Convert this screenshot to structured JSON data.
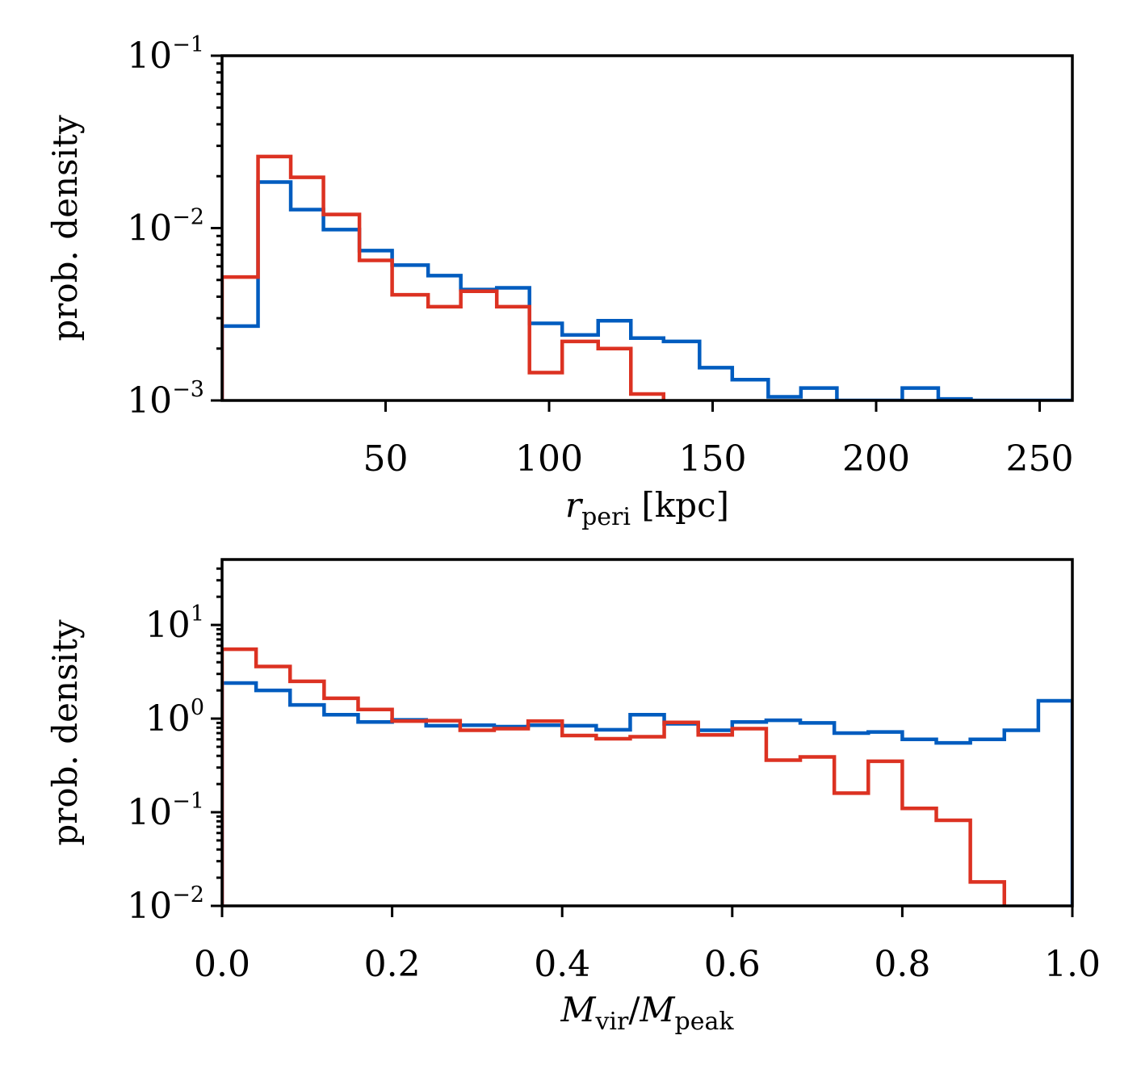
{
  "colors": {
    "blue": "#005cbf",
    "red": "#dc3222"
  },
  "chart_data": [
    {
      "type": "histogram",
      "xlabel": {
        "var": "r",
        "sub": "peri",
        "unit": " [kpc]"
      },
      "ylabel": "prob. density",
      "yscale": "log",
      "xlim": [
        0,
        260
      ],
      "ylim": [
        0.001,
        0.1
      ],
      "xticks": [
        50,
        100,
        150,
        200,
        250
      ],
      "xticklabels": [
        "50",
        "100",
        "150",
        "200",
        "250"
      ],
      "yticks": [
        0.001,
        0.01,
        0.1
      ],
      "yticklabels": [
        {
          "base": "10",
          "exp": "−3"
        },
        {
          "base": "10",
          "exp": "−2"
        },
        {
          "base": "10",
          "exp": "−1"
        }
      ],
      "bin_edges": [
        0,
        11,
        21,
        31,
        42,
        52,
        63,
        73,
        84,
        94,
        104,
        115,
        125,
        135,
        146,
        156,
        167,
        177,
        188,
        198,
        208,
        219,
        229,
        239,
        250,
        260
      ],
      "series": [
        {
          "name": "blue",
          "color": "#005cbf",
          "values": [
            0.0027,
            0.0185,
            0.0128,
            0.0098,
            0.0074,
            0.0061,
            0.0053,
            0.0044,
            0.0045,
            0.0028,
            0.0024,
            0.0029,
            0.0023,
            0.0022,
            0.00155,
            0.00132,
            0.00105,
            0.00118,
            0.00095,
            0.00095,
            0.00118,
            0.00102,
            0.00095,
            0.00095,
            0.00095
          ]
        },
        {
          "name": "red",
          "color": "#dc3222",
          "values": [
            0.0052,
            0.026,
            0.0197,
            0.012,
            0.0065,
            0.0041,
            0.0035,
            0.0043,
            0.0035,
            0.00145,
            0.0022,
            0.002,
            0.00109
          ]
        }
      ]
    },
    {
      "type": "histogram",
      "xlabel": {
        "parts": [
          {
            "var": "M",
            "sub": "vir"
          },
          {
            "sep": "/"
          },
          {
            "var": "M",
            "sub": "peak"
          }
        ]
      },
      "ylabel": "prob. density",
      "yscale": "log",
      "xlim": [
        0,
        1
      ],
      "ylim": [
        0.01,
        50
      ],
      "xticks": [
        0,
        0.2,
        0.4,
        0.6,
        0.8,
        1.0
      ],
      "xticklabels": [
        "0.0",
        "0.2",
        "0.4",
        "0.6",
        "0.8",
        "1.0"
      ],
      "yticks": [
        0.01,
        0.1,
        1,
        10
      ],
      "yticklabels": [
        {
          "base": "10",
          "exp": "−2"
        },
        {
          "base": "10",
          "exp": "−1"
        },
        {
          "base": "10",
          "exp": "0"
        },
        {
          "base": "10",
          "exp": "1"
        }
      ],
      "bin_edges": [
        0,
        0.04,
        0.08,
        0.12,
        0.16,
        0.2,
        0.24,
        0.28,
        0.32,
        0.36,
        0.4,
        0.44,
        0.48,
        0.52,
        0.56,
        0.6,
        0.64,
        0.68,
        0.72,
        0.76,
        0.8,
        0.84,
        0.88,
        0.92,
        0.96,
        1.0
      ],
      "series": [
        {
          "name": "blue",
          "color": "#005cbf",
          "values": [
            2.4,
            2.0,
            1.4,
            1.1,
            0.92,
            0.97,
            0.84,
            0.85,
            0.82,
            0.85,
            0.84,
            0.76,
            1.1,
            0.88,
            0.75,
            0.92,
            0.96,
            0.9,
            0.7,
            0.72,
            0.6,
            0.55,
            0.6,
            0.75,
            1.55
          ]
        },
        {
          "name": "red",
          "color": "#dc3222",
          "values": [
            5.5,
            3.6,
            2.5,
            1.65,
            1.25,
            0.94,
            0.95,
            0.75,
            0.78,
            0.94,
            0.66,
            0.61,
            0.64,
            0.91,
            0.67,
            0.78,
            0.36,
            0.39,
            0.16,
            0.35,
            0.11,
            0.082,
            0.018
          ]
        }
      ]
    }
  ]
}
